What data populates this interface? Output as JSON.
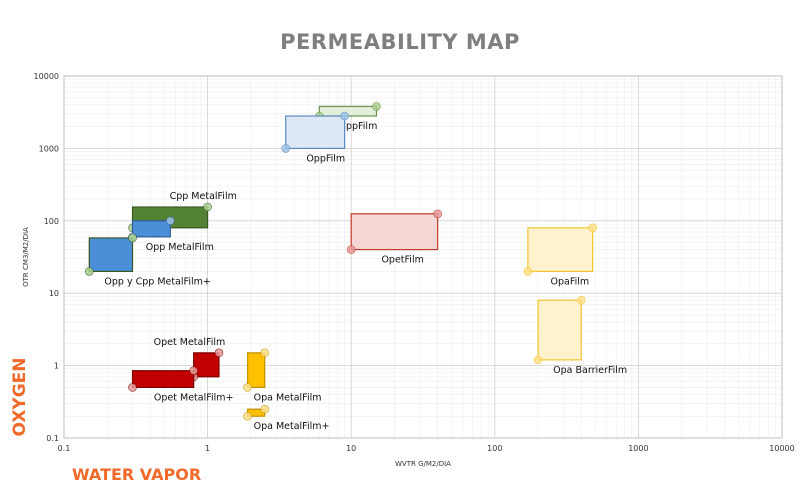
{
  "chart_data": {
    "type": "scatter",
    "title": "PERMEABILITY MAP",
    "xlabel": "WVTR G/M2/DIA",
    "ylabel": "OTR CM3/M2/DIA",
    "x_axis_category": "WATER VAPOR",
    "y_axis_category": "OXYGEN",
    "xscale": "log",
    "yscale": "log",
    "xlim": [
      0.1,
      10000
    ],
    "ylim": [
      0.1,
      10000
    ],
    "x_ticks": [
      "0.1",
      "1",
      "10",
      "100",
      "1000",
      "10000"
    ],
    "y_ticks": [
      "0.1",
      "1",
      "10",
      "100",
      "1000",
      "10000"
    ],
    "grid": true,
    "legend": "none",
    "regions": [
      {
        "name": "CppFilm",
        "x": [
          6,
          15
        ],
        "y": [
          2800,
          3800
        ],
        "color": "#e2efd9",
        "edge": "#6d8f52",
        "dot": "#a9d18e",
        "label_pos": "below-right"
      },
      {
        "name": "OppFilm",
        "x": [
          3.5,
          9
        ],
        "y": [
          1000,
          2800
        ],
        "color": "#dce8f6",
        "edge": "#5b8ac4",
        "dot": "#9dc3e6",
        "label_pos": "below-right"
      },
      {
        "name": "Cpp MetalFilm",
        "x": [
          0.3,
          1.0
        ],
        "y": [
          80,
          155
        ],
        "color": "#548235",
        "edge": "#385723",
        "dot": "#a9d18e",
        "label_pos": "above-right"
      },
      {
        "name": "Opp MetalFilm",
        "x": [
          0.3,
          0.55
        ],
        "y": [
          60,
          100
        ],
        "color": "#4a8fd8",
        "edge": "#2e5e9a",
        "dot": "#9dc3e6",
        "label_pos": "below-right"
      },
      {
        "name": "Opp y Cpp MetalFilm+",
        "x": [
          0.15,
          0.3
        ],
        "y": [
          20,
          58
        ],
        "color": "#4a8fd8",
        "edge": "#385723",
        "dot": "#a9d18e",
        "label_pos": "below-right"
      },
      {
        "name": "OpetFilm",
        "x": [
          10,
          40
        ],
        "y": [
          40,
          125
        ],
        "color": "#f6d5d5",
        "edge": "#c0392b",
        "dot": "#e59a9a",
        "label_pos": "below-right"
      },
      {
        "name": "OpaFilm",
        "x": [
          170,
          480
        ],
        "y": [
          20,
          80
        ],
        "color": "#fff2cc",
        "edge": "#f4c430",
        "dot": "#ffe08a",
        "label_pos": "below-right"
      },
      {
        "name": "Opa BarrierFilm",
        "x": [
          200,
          400
        ],
        "y": [
          1.2,
          8
        ],
        "color": "#fff2cc",
        "edge": "#f4c430",
        "dot": "#ffe08a",
        "label_pos": "below-right"
      },
      {
        "name": "Opet MetalFilm",
        "x": [
          0.8,
          1.2
        ],
        "y": [
          0.7,
          1.5
        ],
        "color": "#c00000",
        "edge": "#7f0000",
        "dot": "#e59a9a",
        "label_pos": "above-left"
      },
      {
        "name": "Opet MetalFilm+",
        "x": [
          0.3,
          0.8
        ],
        "y": [
          0.5,
          0.85
        ],
        "color": "#c00000",
        "edge": "#7f0000",
        "dot": "#e59a9a",
        "label_pos": "below-right"
      },
      {
        "name": "Opa MetalFilm",
        "x": [
          1.9,
          2.5
        ],
        "y": [
          0.5,
          1.5
        ],
        "color": "#ffc000",
        "edge": "#bf9000",
        "dot": "#ffe08a",
        "label_pos": "below-right"
      },
      {
        "name": "Opa MetalFilm+",
        "x": [
          1.9,
          2.5
        ],
        "y": [
          0.2,
          0.25
        ],
        "color": "#ffc000",
        "edge": "#bf9000",
        "dot": "#ffe08a",
        "label_pos": "below-right"
      }
    ]
  }
}
